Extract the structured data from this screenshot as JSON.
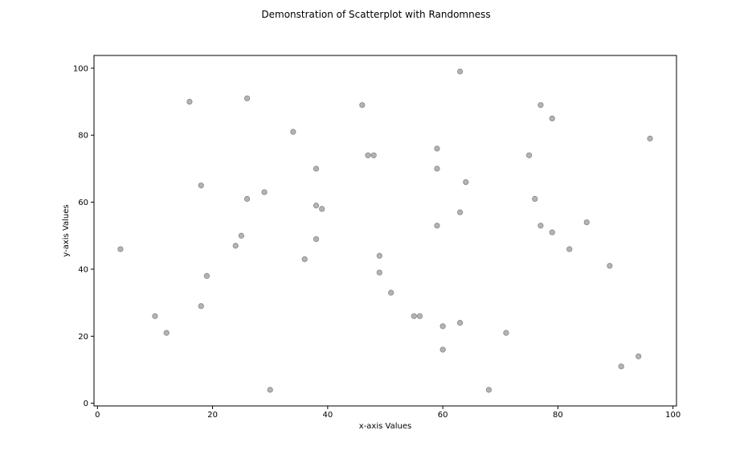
{
  "chart_data": {
    "type": "scatter",
    "title": "Demonstration of Scatterplot with Randomness",
    "xlabel": "x-axis Values",
    "ylabel": "y-axis Values",
    "xlim": [
      -0.6,
      100.6
    ],
    "ylim": [
      -0.8,
      103.8
    ],
    "xticks": [
      0,
      20,
      40,
      60,
      80,
      100
    ],
    "yticks": [
      0,
      20,
      40,
      60,
      80,
      100
    ],
    "grid": false,
    "colors": {
      "marker_fill": "#b3b3b3",
      "marker_edge": "#888888"
    },
    "points": [
      {
        "x": 4,
        "y": 46
      },
      {
        "x": 10,
        "y": 26
      },
      {
        "x": 12,
        "y": 21
      },
      {
        "x": 16,
        "y": 90
      },
      {
        "x": 18,
        "y": 65
      },
      {
        "x": 18,
        "y": 29
      },
      {
        "x": 19,
        "y": 38
      },
      {
        "x": 24,
        "y": 47
      },
      {
        "x": 25,
        "y": 50
      },
      {
        "x": 26,
        "y": 91
      },
      {
        "x": 26,
        "y": 61
      },
      {
        "x": 29,
        "y": 63
      },
      {
        "x": 30,
        "y": 4
      },
      {
        "x": 34,
        "y": 81
      },
      {
        "x": 36,
        "y": 43
      },
      {
        "x": 38,
        "y": 70
      },
      {
        "x": 38,
        "y": 59
      },
      {
        "x": 38,
        "y": 49
      },
      {
        "x": 39,
        "y": 58
      },
      {
        "x": 46,
        "y": 89
      },
      {
        "x": 47,
        "y": 74
      },
      {
        "x": 48,
        "y": 74
      },
      {
        "x": 49,
        "y": 44
      },
      {
        "x": 49,
        "y": 39
      },
      {
        "x": 51,
        "y": 33
      },
      {
        "x": 55,
        "y": 26
      },
      {
        "x": 56,
        "y": 26
      },
      {
        "x": 59,
        "y": 76
      },
      {
        "x": 59,
        "y": 70
      },
      {
        "x": 59,
        "y": 53
      },
      {
        "x": 60,
        "y": 23
      },
      {
        "x": 60,
        "y": 16
      },
      {
        "x": 63,
        "y": 99
      },
      {
        "x": 63,
        "y": 57
      },
      {
        "x": 63,
        "y": 24
      },
      {
        "x": 64,
        "y": 66
      },
      {
        "x": 68,
        "y": 4
      },
      {
        "x": 71,
        "y": 21
      },
      {
        "x": 75,
        "y": 74
      },
      {
        "x": 76,
        "y": 61
      },
      {
        "x": 77,
        "y": 89
      },
      {
        "x": 77,
        "y": 53
      },
      {
        "x": 79,
        "y": 85
      },
      {
        "x": 79,
        "y": 51
      },
      {
        "x": 82,
        "y": 46
      },
      {
        "x": 85,
        "y": 54
      },
      {
        "x": 89,
        "y": 41
      },
      {
        "x": 91,
        "y": 11
      },
      {
        "x": 94,
        "y": 14
      },
      {
        "x": 96,
        "y": 79
      }
    ]
  }
}
